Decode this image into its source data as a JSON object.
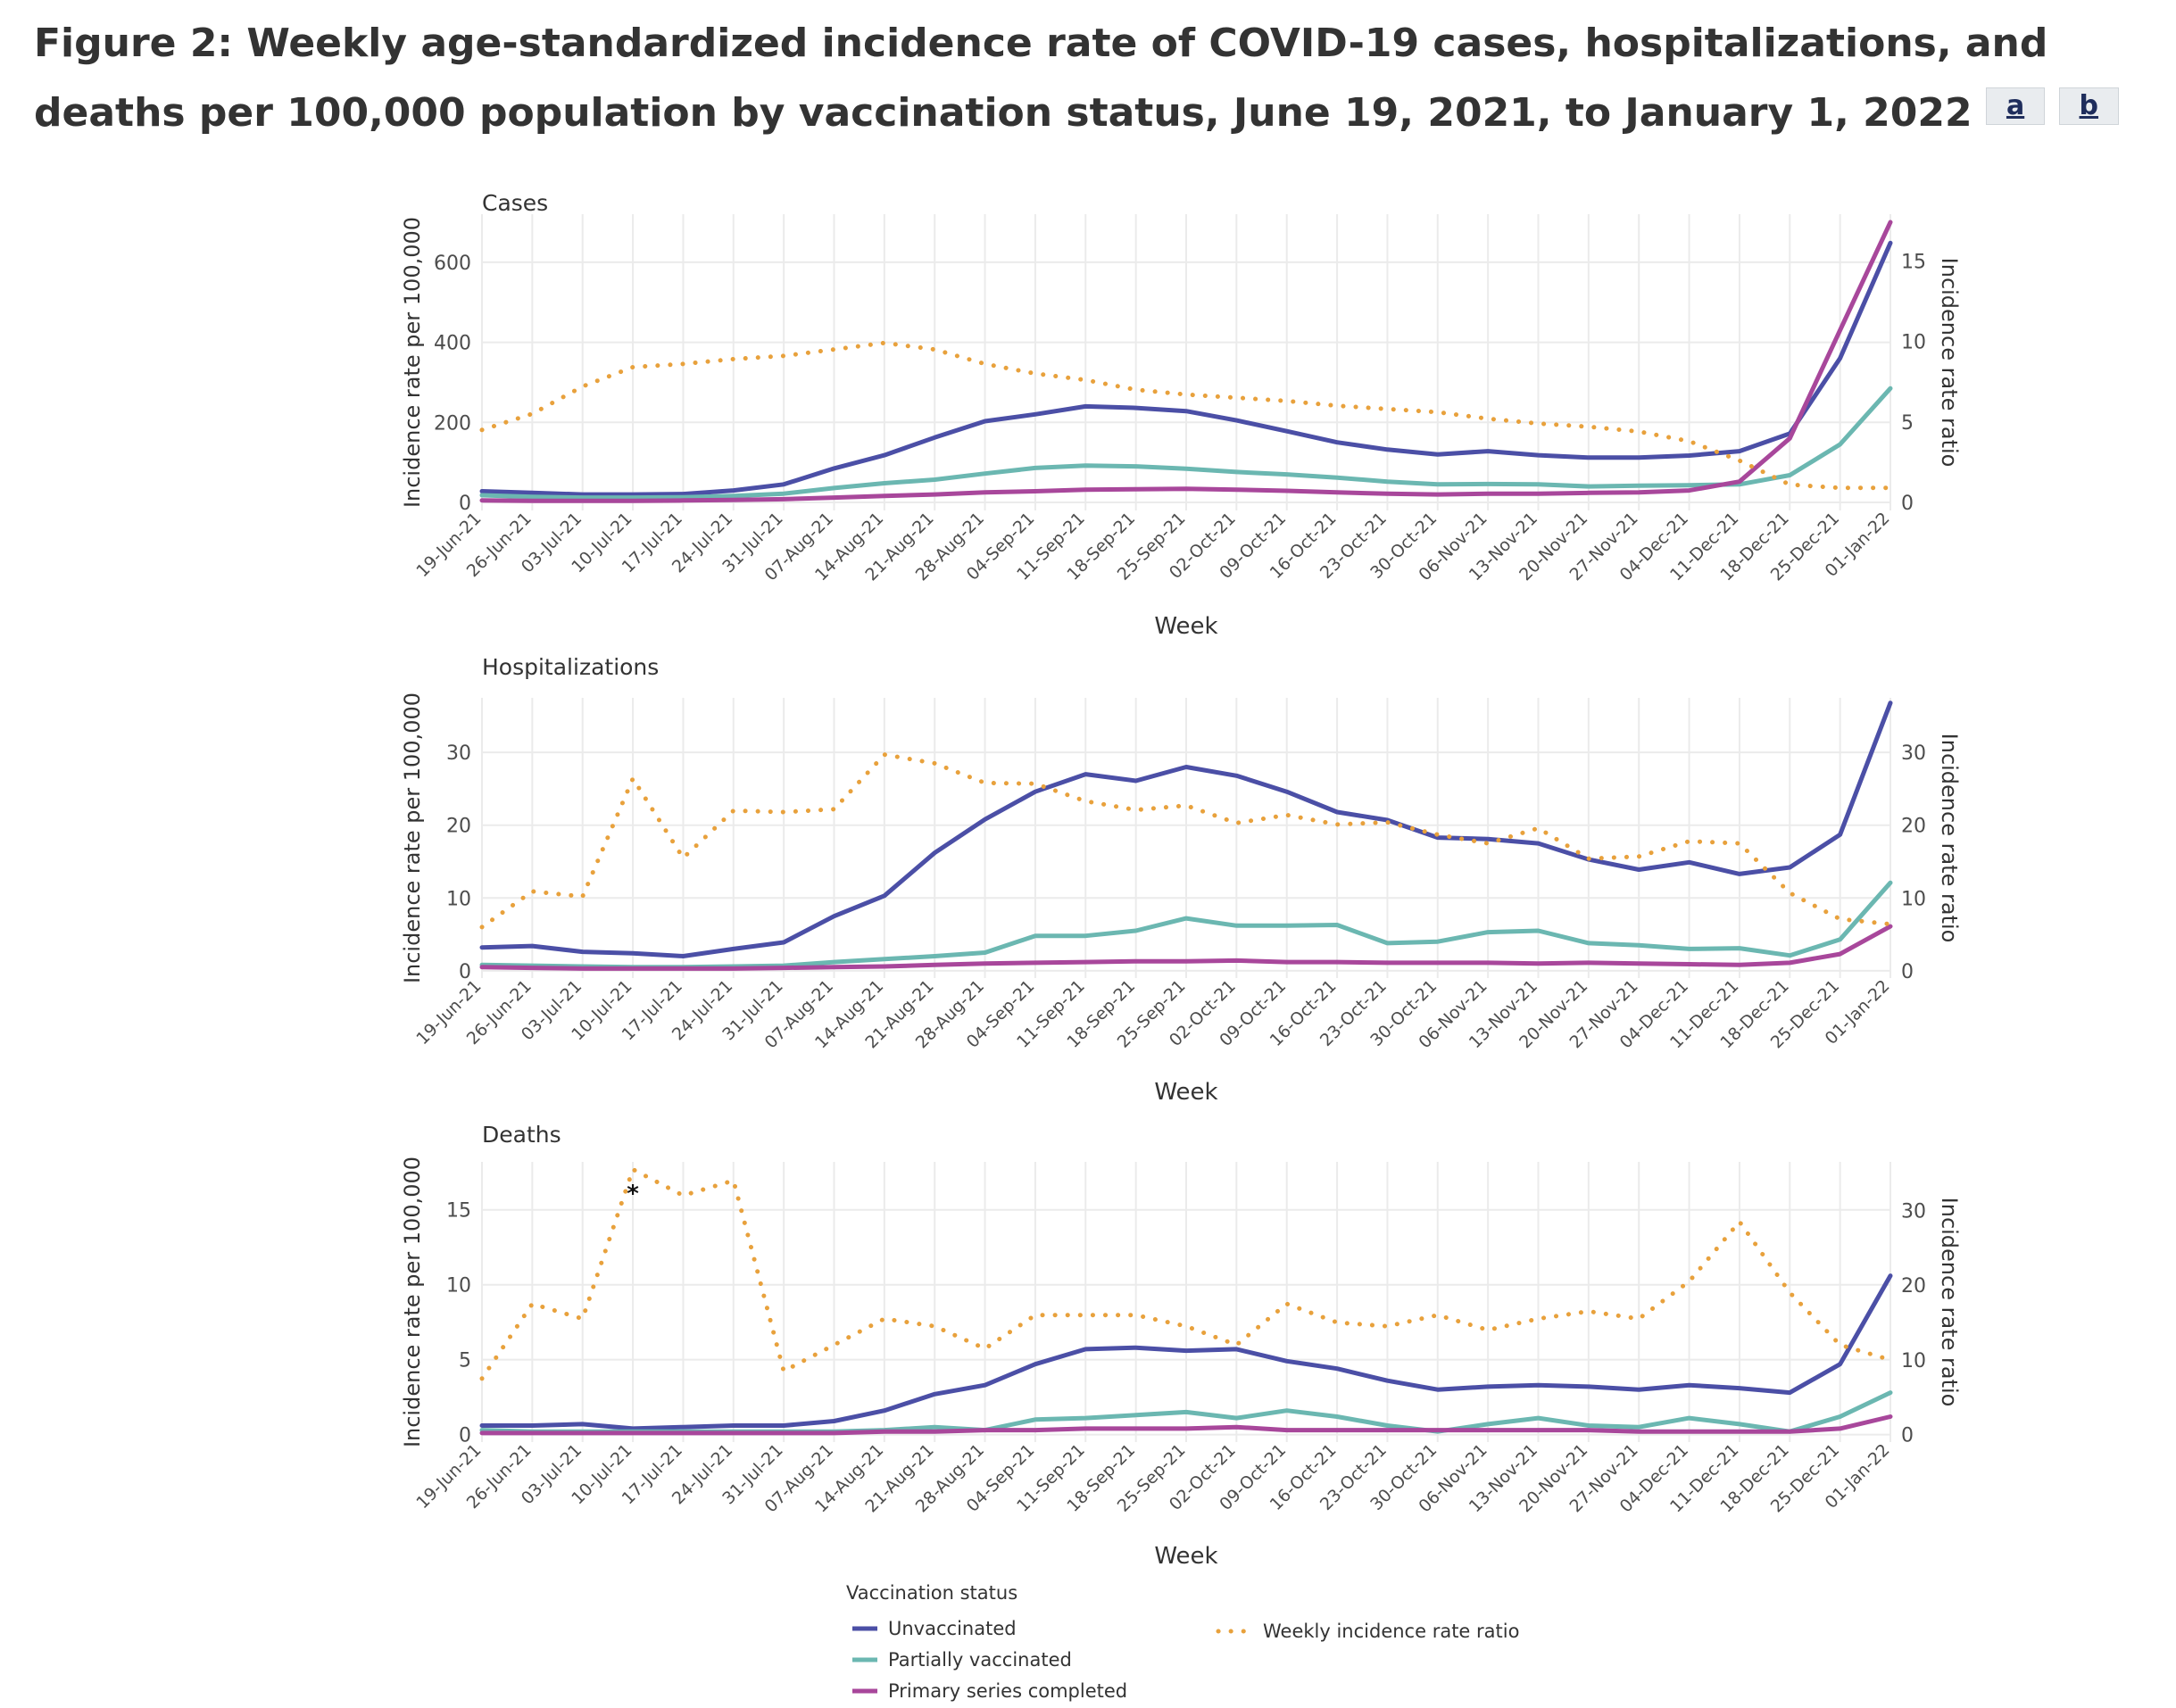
{
  "title": {
    "text": "Figure 2: Weekly age-standardized incidence rate of COVID-19 cases, hospitalizations, and deaths per 100,000 population by vaccination status, June 19, 2021, to January 1, 2022",
    "footnotes": [
      "a",
      "b"
    ]
  },
  "colors": {
    "unvaccinated": "#4b4fa6",
    "partially": "#6bb7b1",
    "completed": "#a8479b",
    "ratio": "#e8a13c",
    "grid": "#ebebeb",
    "text": "#333333"
  },
  "legend": {
    "title": "Vaccination status",
    "items": [
      {
        "key": "unvaccinated",
        "label": "Unvaccinated",
        "style": "solid"
      },
      {
        "key": "partially",
        "label": "Partially vaccinated",
        "style": "solid"
      },
      {
        "key": "completed",
        "label": "Primary series completed",
        "style": "solid"
      },
      {
        "key": "ratio",
        "label": "Weekly incidence rate ratio",
        "style": "dotted"
      }
    ]
  },
  "chart_data": [
    {
      "type": "line",
      "title": "Cases",
      "xlabel": "Week",
      "ylabel": "Incidence rate per 100,000",
      "ylabel_right": "Incidence rate ratio",
      "categories": [
        "19-Jun-21",
        "26-Jun-21",
        "03-Jul-21",
        "10-Jul-21",
        "17-Jul-21",
        "24-Jul-21",
        "31-Jul-21",
        "07-Aug-21",
        "14-Aug-21",
        "21-Aug-21",
        "28-Aug-21",
        "04-Sep-21",
        "11-Sep-21",
        "18-Sep-21",
        "25-Sep-21",
        "02-Oct-21",
        "09-Oct-21",
        "16-Oct-21",
        "23-Oct-21",
        "30-Oct-21",
        "06-Nov-21",
        "13-Nov-21",
        "20-Nov-21",
        "27-Nov-21",
        "04-Dec-21",
        "11-Dec-21",
        "18-Dec-21",
        "25-Dec-21",
        "01-Jan-22"
      ],
      "ylim": [
        -20,
        720
      ],
      "yticks": [
        0,
        200,
        400,
        600
      ],
      "ylim_right": [
        -0.5,
        17.9
      ],
      "yticks_right": [
        0,
        5,
        10,
        15
      ],
      "grid": true,
      "series": [
        {
          "name": "Unvaccinated",
          "key": "unvaccinated",
          "axis": "left",
          "values": [
            28,
            24,
            20,
            20,
            21,
            30,
            45,
            85,
            118,
            162,
            203,
            220,
            240,
            236,
            228,
            205,
            178,
            150,
            132,
            120,
            128,
            118,
            112,
            112,
            117,
            128,
            172,
            360,
            648
          ]
        },
        {
          "name": "Partially vaccinated",
          "key": "partially",
          "axis": "left",
          "values": [
            18,
            14,
            12,
            12,
            13,
            16,
            22,
            36,
            48,
            57,
            72,
            86,
            92,
            90,
            84,
            76,
            70,
            62,
            52,
            45,
            46,
            45,
            40,
            42,
            43,
            45,
            68,
            145,
            285
          ]
        },
        {
          "name": "Primary series completed",
          "key": "completed",
          "axis": "left",
          "values": [
            5,
            4,
            4,
            4,
            5,
            6,
            8,
            12,
            16,
            20,
            25,
            28,
            32,
            33,
            34,
            32,
            29,
            25,
            22,
            20,
            22,
            22,
            24,
            25,
            30,
            52,
            160,
            430,
            700
          ]
        },
        {
          "name": "Weekly incidence rate ratio",
          "key": "ratio",
          "axis": "right",
          "values": [
            4.5,
            5.5,
            7.2,
            8.4,
            8.6,
            8.9,
            9.1,
            9.5,
            9.9,
            9.5,
            8.6,
            8.0,
            7.6,
            7.0,
            6.7,
            6.5,
            6.3,
            6.0,
            5.8,
            5.6,
            5.2,
            4.9,
            4.7,
            4.4,
            3.8,
            2.6,
            1.1,
            0.9,
            0.9
          ]
        }
      ]
    },
    {
      "type": "line",
      "title": "Hospitalizations",
      "xlabel": "Week",
      "ylabel": "Incidence rate per 100,000",
      "ylabel_right": "Incidence rate ratio",
      "categories": [
        "19-Jun-21",
        "26-Jun-21",
        "03-Jul-21",
        "10-Jul-21",
        "17-Jul-21",
        "24-Jul-21",
        "31-Jul-21",
        "07-Aug-21",
        "14-Aug-21",
        "21-Aug-21",
        "28-Aug-21",
        "04-Sep-21",
        "11-Sep-21",
        "18-Sep-21",
        "25-Sep-21",
        "02-Oct-21",
        "09-Oct-21",
        "16-Oct-21",
        "23-Oct-21",
        "30-Oct-21",
        "06-Nov-21",
        "13-Nov-21",
        "20-Nov-21",
        "27-Nov-21",
        "04-Dec-21",
        "11-Dec-21",
        "18-Dec-21",
        "25-Dec-21",
        "01-Jan-22"
      ],
      "ylim": [
        -1,
        37.5
      ],
      "yticks": [
        0,
        10,
        20,
        30
      ],
      "ylim_right": [
        -1,
        37.5
      ],
      "yticks_right": [
        0,
        10,
        20,
        30
      ],
      "grid": true,
      "series": [
        {
          "name": "Unvaccinated",
          "key": "unvaccinated",
          "axis": "left",
          "values": [
            3.2,
            3.4,
            2.6,
            2.4,
            2.0,
            3.0,
            3.9,
            7.5,
            10.3,
            16.2,
            20.8,
            24.6,
            27.0,
            26.1,
            28.0,
            26.8,
            24.6,
            21.8,
            20.7,
            18.3,
            18.1,
            17.5,
            15.3,
            13.9,
            14.9,
            13.3,
            14.2,
            18.7,
            36.8
          ]
        },
        {
          "name": "Partially vaccinated",
          "key": "partially",
          "axis": "left",
          "values": [
            0.8,
            0.7,
            0.6,
            0.5,
            0.5,
            0.6,
            0.7,
            1.2,
            1.6,
            2.0,
            2.5,
            4.8,
            4.8,
            5.5,
            7.2,
            6.2,
            6.2,
            6.3,
            3.8,
            4.0,
            5.3,
            5.5,
            3.8,
            3.5,
            3.0,
            3.1,
            2.1,
            4.3,
            12.1
          ]
        },
        {
          "name": "Primary series completed",
          "key": "completed",
          "axis": "left",
          "values": [
            0.5,
            0.4,
            0.3,
            0.3,
            0.3,
            0.3,
            0.4,
            0.5,
            0.6,
            0.8,
            1.0,
            1.1,
            1.2,
            1.3,
            1.3,
            1.4,
            1.2,
            1.2,
            1.1,
            1.1,
            1.1,
            1.0,
            1.1,
            1.0,
            0.9,
            0.8,
            1.1,
            2.3,
            6.1
          ]
        },
        {
          "name": "Weekly incidence rate ratio",
          "key": "ratio",
          "axis": "right",
          "values": [
            6.0,
            10.9,
            10.2,
            26.4,
            15.5,
            22.0,
            21.8,
            22.2,
            29.7,
            28.5,
            25.8,
            25.7,
            23.3,
            22.1,
            22.7,
            20.3,
            21.4,
            20.1,
            20.4,
            18.7,
            17.5,
            19.6,
            15.4,
            15.7,
            17.8,
            17.5,
            10.7,
            7.1,
            6.4
          ]
        }
      ]
    },
    {
      "type": "line",
      "title": "Deaths",
      "xlabel": "Week",
      "ylabel": "Incidence rate per 100,000",
      "ylabel_right": "Incidence rate ratio",
      "categories": [
        "19-Jun-21",
        "26-Jun-21",
        "03-Jul-21",
        "10-Jul-21",
        "17-Jul-21",
        "24-Jul-21",
        "31-Jul-21",
        "07-Aug-21",
        "14-Aug-21",
        "21-Aug-21",
        "28-Aug-21",
        "04-Sep-21",
        "11-Sep-21",
        "18-Sep-21",
        "25-Sep-21",
        "02-Oct-21",
        "09-Oct-21",
        "16-Oct-21",
        "23-Oct-21",
        "30-Oct-21",
        "06-Nov-21",
        "13-Nov-21",
        "20-Nov-21",
        "27-Nov-21",
        "04-Dec-21",
        "11-Dec-21",
        "18-Dec-21",
        "25-Dec-21",
        "01-Jan-22"
      ],
      "ylim": [
        -0.5,
        18.2
      ],
      "yticks": [
        0,
        5,
        10,
        15
      ],
      "ylim_right": [
        -1,
        36.5
      ],
      "yticks_right": [
        0,
        10,
        20,
        30
      ],
      "grid": true,
      "annotation": {
        "text": "*",
        "category": "10-Jul-21",
        "value": 16.4,
        "axis": "left"
      },
      "series": [
        {
          "name": "Unvaccinated",
          "key": "unvaccinated",
          "axis": "left",
          "values": [
            0.6,
            0.6,
            0.7,
            0.4,
            0.5,
            0.6,
            0.6,
            0.9,
            1.6,
            2.7,
            3.3,
            4.7,
            5.7,
            5.8,
            5.6,
            5.7,
            4.9,
            4.4,
            3.6,
            3.0,
            3.2,
            3.3,
            3.2,
            3.0,
            3.3,
            3.1,
            2.8,
            4.7,
            10.6
          ]
        },
        {
          "name": "Partially vaccinated",
          "key": "partially",
          "axis": "left",
          "values": [
            0.3,
            0.2,
            0.2,
            0.2,
            0.2,
            0.2,
            0.2,
            0.2,
            0.3,
            0.5,
            0.3,
            1.0,
            1.1,
            1.3,
            1.5,
            1.1,
            1.6,
            1.2,
            0.6,
            0.2,
            0.7,
            1.1,
            0.6,
            0.5,
            1.1,
            0.7,
            0.2,
            1.2,
            2.8
          ]
        },
        {
          "name": "Primary series completed",
          "key": "completed",
          "axis": "left",
          "values": [
            0.1,
            0.1,
            0.1,
            0.1,
            0.1,
            0.1,
            0.1,
            0.1,
            0.2,
            0.2,
            0.3,
            0.3,
            0.4,
            0.4,
            0.4,
            0.5,
            0.3,
            0.3,
            0.3,
            0.3,
            0.3,
            0.3,
            0.3,
            0.2,
            0.2,
            0.2,
            0.2,
            0.4,
            1.2
          ]
        },
        {
          "name": "Weekly incidence rate ratio",
          "key": "ratio",
          "axis": "right",
          "values": [
            7.5,
            17.5,
            15.5,
            35.5,
            32.0,
            34.0,
            8.5,
            12.0,
            15.5,
            14.5,
            11.5,
            16.0,
            16.0,
            16.0,
            14.5,
            12.0,
            17.5,
            15.0,
            14.5,
            16.0,
            14.0,
            15.5,
            16.5,
            15.5,
            20.5,
            28.5,
            19.0,
            12.0,
            10.0
          ]
        }
      ]
    }
  ]
}
